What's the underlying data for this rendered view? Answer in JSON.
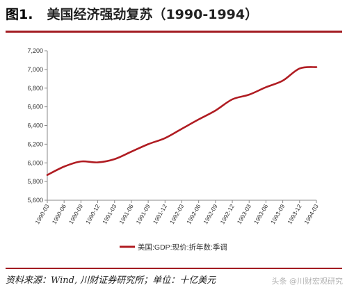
{
  "header": {
    "figure_number": "图1.",
    "title": "美国经济强劲复苏（1990-1994）"
  },
  "footer": {
    "source": "资料来源：Wind, 川财证券研究所；单位：十亿美元",
    "watermark": "头条 @川财宏观研究"
  },
  "colors": {
    "series": "#b01c22",
    "rule": "#a31c22",
    "axis": "#888888"
  },
  "chart_data": {
    "type": "line",
    "legend_position": "bottom-center",
    "grid": false,
    "ylim": [
      5600,
      7200
    ],
    "yticks": [
      "5,600",
      "5,800",
      "6,000",
      "6,200",
      "6,400",
      "6,600",
      "6,800",
      "7,000",
      "7,200"
    ],
    "ytick_values": [
      5600,
      5800,
      6000,
      6200,
      6400,
      6600,
      6800,
      7000,
      7200
    ],
    "xticks": [
      "1990-03",
      "1990-06",
      "1990-09",
      "1990-12",
      "1991-03",
      "1991-06",
      "1991-09",
      "1991-12",
      "1992-03",
      "1992-06",
      "1992-09",
      "1992-12",
      "1993-03",
      "1993-06",
      "1993-09",
      "1993-12",
      "1994-03"
    ],
    "series": [
      {
        "name": "美国:GDP:现价:折年数:季调",
        "x": [
          "1990-03",
          "1990-06",
          "1990-09",
          "1990-12",
          "1991-03",
          "1991-06",
          "1991-09",
          "1991-12",
          "1992-03",
          "1992-06",
          "1992-09",
          "1992-12",
          "1993-03",
          "1993-06",
          "1993-09",
          "1993-12",
          "1994-03"
        ],
        "values": [
          5870,
          5960,
          6015,
          6005,
          6040,
          6120,
          6200,
          6265,
          6365,
          6465,
          6560,
          6680,
          6730,
          6810,
          6880,
          7010,
          7025
        ]
      }
    ]
  }
}
